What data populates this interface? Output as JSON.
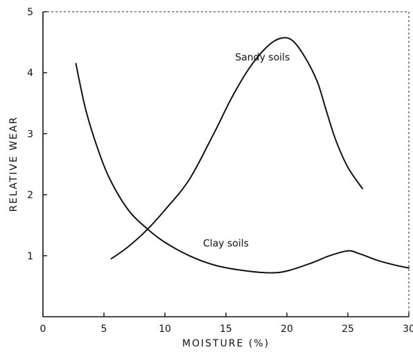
{
  "chart_data": {
    "type": "line",
    "title": "",
    "xlabel": "MOISTURE (%)",
    "ylabel": "RELATIVE WEAR",
    "xlim": [
      0,
      30
    ],
    "ylim": [
      0,
      5
    ],
    "xticks": [
      0,
      5,
      10,
      15,
      20,
      25,
      30
    ],
    "yticks": [
      1,
      2,
      3,
      4,
      5
    ],
    "grid": false,
    "legend": "none",
    "series": [
      {
        "name": "Sandy soils",
        "x": [
          5.6,
          7,
          8.5,
          10,
          12,
          14,
          15.5,
          17,
          18.5,
          19.6,
          20.5,
          21.5,
          22.5,
          23.2,
          24,
          25,
          26.2
        ],
        "y": [
          0.95,
          1.15,
          1.42,
          1.75,
          2.25,
          3.0,
          3.6,
          4.1,
          4.45,
          4.57,
          4.52,
          4.25,
          3.85,
          3.4,
          2.9,
          2.45,
          2.1
        ]
      },
      {
        "name": "Clay soils",
        "x": [
          2.7,
          3.5,
          4.5,
          5.5,
          7,
          8.5,
          10,
          12,
          14,
          16,
          18.5,
          20,
          22,
          23.5,
          25,
          26,
          27.5,
          29,
          30
        ],
        "y": [
          4.15,
          3.4,
          2.75,
          2.25,
          1.75,
          1.45,
          1.22,
          1.0,
          0.85,
          0.77,
          0.72,
          0.75,
          0.88,
          1.0,
          1.08,
          1.03,
          0.92,
          0.84,
          0.8
        ]
      }
    ]
  }
}
